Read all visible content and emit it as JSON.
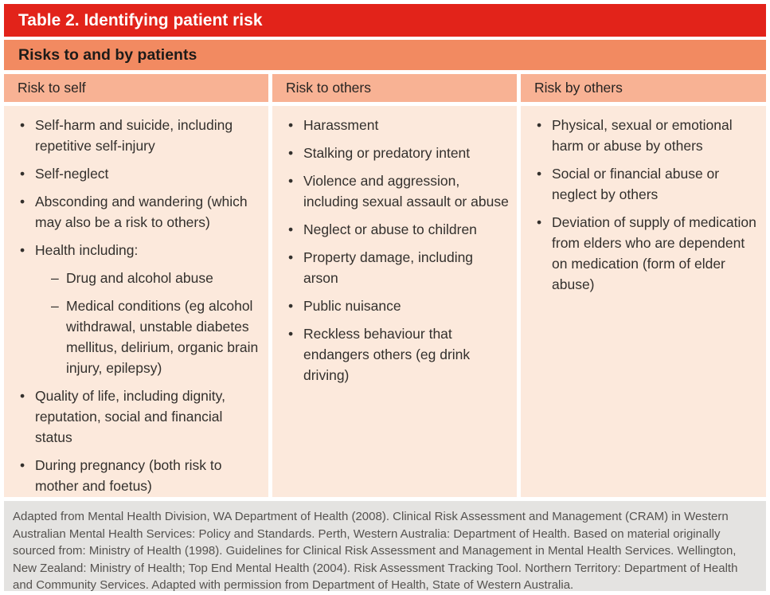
{
  "table": {
    "title": "Table 2. Identifying patient risk",
    "subtitle": "Risks to and by patients",
    "columns": [
      {
        "header": "Risk to self",
        "items": [
          {
            "text": "Self-harm and suicide, including repetitive self-injury"
          },
          {
            "text": "Self-neglect"
          },
          {
            "text": "Absconding and wandering (which may also be a risk to others)"
          },
          {
            "text": "Health including:",
            "children": [
              "Drug and alcohol abuse",
              "Medical conditions (eg alcohol withdrawal, unstable diabetes mellitus, delirium, organic brain injury, epilepsy)"
            ]
          },
          {
            "text": "Quality of life, including dignity, reputation, social and financial status"
          },
          {
            "text": "During pregnancy (both risk to mother and foetus)"
          }
        ]
      },
      {
        "header": "Risk to others",
        "items": [
          {
            "text": "Harassment"
          },
          {
            "text": "Stalking or predatory intent"
          },
          {
            "text": "Violence and aggression, including sexual assault or abuse"
          },
          {
            "text": "Neglect or abuse to children"
          },
          {
            "text": "Property damage, including arson"
          },
          {
            "text": "Public nuisance"
          },
          {
            "text": "Reckless behaviour that endangers others (eg drink driving)"
          }
        ]
      },
      {
        "header": "Risk by others",
        "items": [
          {
            "text": "Physical, sexual or emotional harm or abuse by others"
          },
          {
            "text": "Social or financial abuse or neglect by others"
          },
          {
            "text": "Deviation of supply of medication from elders who are dependent on medication (form of elder abuse)"
          }
        ]
      }
    ],
    "footnote": "Adapted from Mental Health Division, WA Department of Health (2008). Clinical Risk Assessment and Management (CRAM) in Western Australian Mental Health Services: Policy and Standards. Perth, Western Australia: Department of Health. Based on material originally sourced from: Ministry of Health (1998). Guidelines for Clinical Risk Assessment and Management in Mental Health Services. Wellington, New Zealand: Ministry of Health; Top End Mental Health (2004). Risk Assessment Tracking Tool. Northern Territory: Department of Health and Community Services. Adapted with permission from Department of Health, State of Western Australia."
  },
  "colors": {
    "title_bar": "#e2231a",
    "title_text": "#ffffff",
    "subtitle_bar": "#f28a61",
    "column_header_bar": "#f8b294",
    "cell_background": "#fce9dc",
    "footnote_background": "#e4e3e1",
    "body_text": "#33302d",
    "footnote_text": "#55524f"
  }
}
